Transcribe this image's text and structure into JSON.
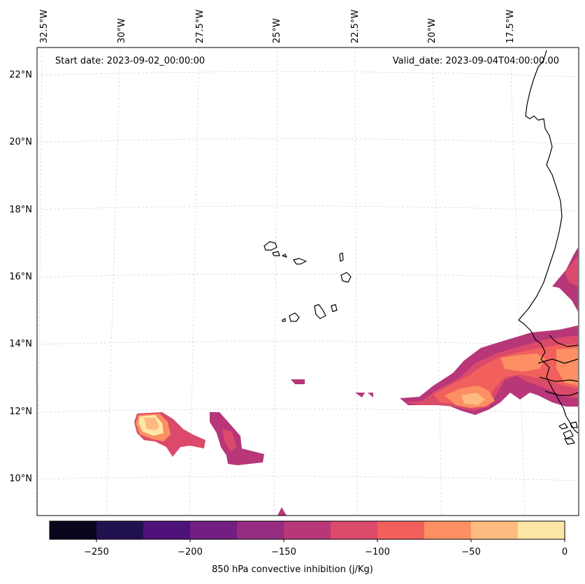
{
  "header": {
    "start_date": "Start date: 2023-09-02_00:00:00",
    "valid_date": "Valid_date: 2023-09-04T04:00:00.00"
  },
  "map": {
    "lon_labels": [
      "32.5°W",
      "30°W",
      "27.5°W",
      "25°W",
      "22.5°W",
      "20°W",
      "17.5°W"
    ],
    "lat_labels": [
      "22°N",
      "20°N",
      "18°N",
      "16°N",
      "14°N",
      "12°N",
      "10°N"
    ],
    "gridlines": "dashed",
    "coastline_color": "#000000"
  },
  "colorbar": {
    "label": "850 hPa convective inhibition (j/Kg)",
    "tick_labels": [
      "−250",
      "−200",
      "−150",
      "−100",
      "−50",
      "0"
    ],
    "bins": [
      -275,
      -250,
      -225,
      -200,
      -175,
      -150,
      -125,
      -100,
      -75,
      -50,
      -25,
      0
    ],
    "colors": [
      "#07061c",
      "#221150",
      "#4f127b",
      "#721f81",
      "#952c80",
      "#b73779",
      "#dc4a6b",
      "#f1605d",
      "#fc8f63",
      "#febb80",
      "#fde7a6"
    ]
  },
  "field": {
    "variable": "850 hPa convective inhibition",
    "units": "j/Kg"
  }
}
